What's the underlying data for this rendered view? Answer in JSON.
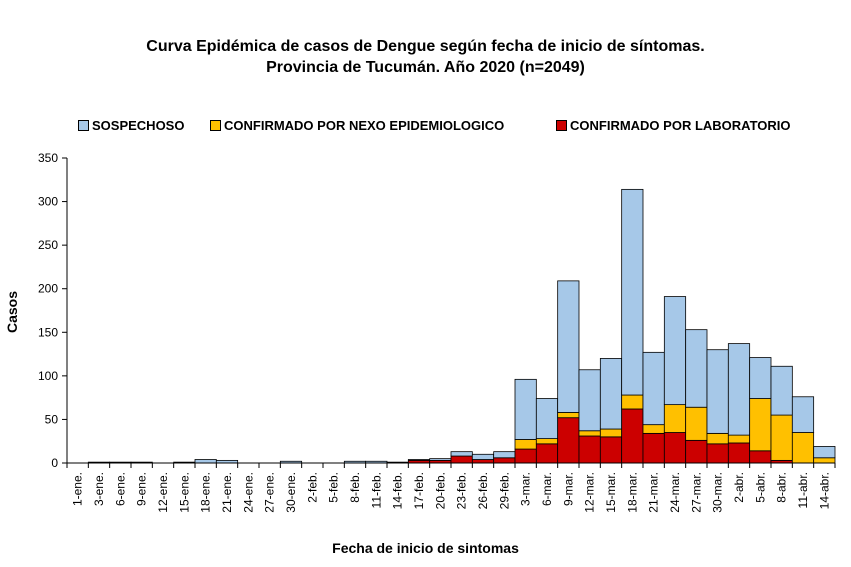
{
  "chart_data": {
    "type": "bar",
    "stacked": true,
    "title": "Curva Epidémica de casos de Dengue según fecha de inicio de síntomas.",
    "subtitle": "Provincia de Tucumán. Año 2020 (n=2049)",
    "xlabel": "Fecha de inicio de sintomas",
    "ylabel": "Casos",
    "ylim": [
      0,
      350
    ],
    "yticks": [
      0,
      50,
      100,
      150,
      200,
      250,
      300,
      350
    ],
    "grid": false,
    "legend_position": "top",
    "categories": [
      "1-ene.",
      "3-ene.",
      "6-ene.",
      "9-ene.",
      "12-ene.",
      "15-ene.",
      "18-ene.",
      "21-ene.",
      "24-ene.",
      "27-ene.",
      "30-ene.",
      "2-feb.",
      "5-feb.",
      "8-feb.",
      "11-feb.",
      "14-feb.",
      "17-feb.",
      "20-feb.",
      "23-feb.",
      "26-feb.",
      "29-feb.",
      "3-mar.",
      "6-mar.",
      "9-mar.",
      "12-mar.",
      "15-mar.",
      "18-mar.",
      "21-mar.",
      "24-mar.",
      "27-mar.",
      "30-mar.",
      "2-abr.",
      "5-abr.",
      "8-abr.",
      "11-abr.",
      "14-abr."
    ],
    "series": [
      {
        "name": "CONFIRMADO POR LABORATORIO",
        "color": "#cc0000",
        "values": [
          0,
          0,
          0,
          0,
          0,
          0,
          0,
          0,
          0,
          0,
          0,
          0,
          0,
          0,
          0,
          0,
          3,
          3,
          8,
          4,
          6,
          16,
          22,
          52,
          31,
          30,
          62,
          34,
          35,
          26,
          22,
          23,
          14,
          3,
          0,
          0
        ]
      },
      {
        "name": "CONFIRMADO POR NEXO EPIDEMIOLOGICO",
        "color": "#ffc000",
        "values": [
          0,
          0,
          0,
          0,
          0,
          0,
          0,
          0,
          0,
          0,
          0,
          0,
          0,
          0,
          0,
          0,
          0,
          0,
          0,
          0,
          0,
          11,
          6,
          6,
          6,
          9,
          16,
          10,
          32,
          38,
          12,
          9,
          60,
          52,
          35,
          6
        ]
      },
      {
        "name": "SOSPECHOSO",
        "color": "#a6c8e8",
        "values": [
          0,
          1,
          1,
          1,
          0,
          1,
          4,
          3,
          0,
          0,
          2,
          0,
          0,
          2,
          2,
          1,
          1,
          2,
          5,
          6,
          7,
          69,
          46,
          151,
          70,
          81,
          236,
          83,
          124,
          89,
          96,
          105,
          47,
          56,
          41,
          13
        ]
      }
    ]
  }
}
